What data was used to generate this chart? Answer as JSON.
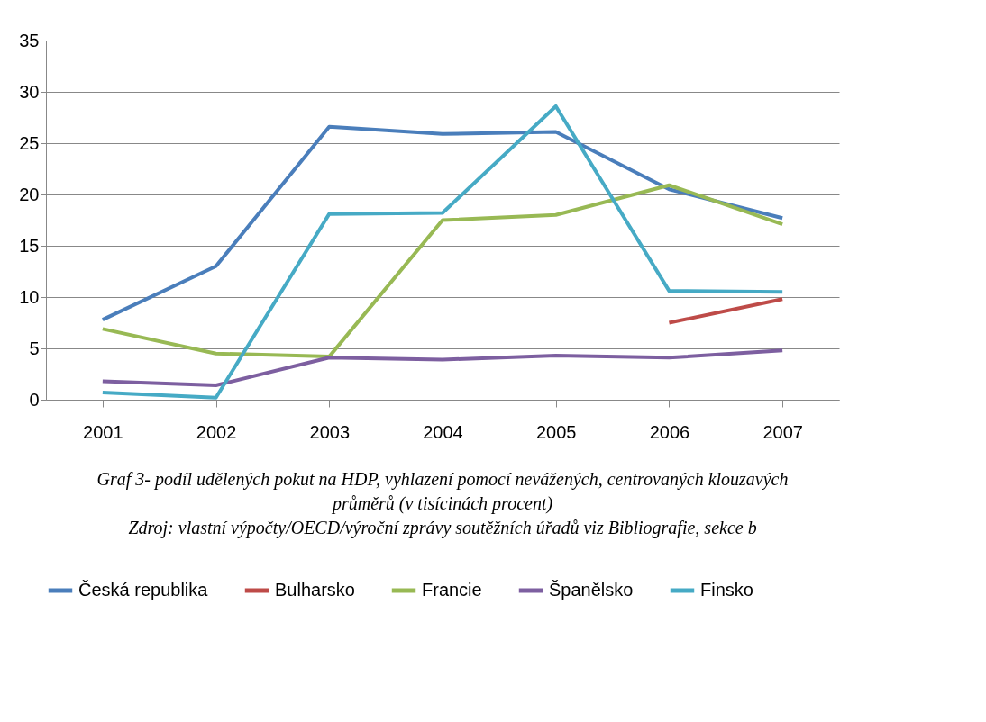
{
  "chart_data": {
    "type": "line",
    "categories": [
      "2001",
      "2002",
      "2003",
      "2004",
      "2005",
      "2006",
      "2007"
    ],
    "series": [
      {
        "name": "Česká republika",
        "color": "#4a7ebb",
        "values": [
          7.8,
          13.0,
          26.6,
          25.9,
          26.1,
          20.5,
          17.7
        ]
      },
      {
        "name": "Bulharsko",
        "color": "#be4b48",
        "values": [
          null,
          null,
          null,
          null,
          null,
          7.5,
          9.8
        ]
      },
      {
        "name": "Francie",
        "color": "#98b954",
        "values": [
          6.9,
          4.5,
          4.2,
          17.5,
          18.0,
          20.9,
          17.1
        ]
      },
      {
        "name": "Španělsko",
        "color": "#7d5fa0",
        "values": [
          1.8,
          1.4,
          4.1,
          3.9,
          4.3,
          4.1,
          4.8
        ]
      },
      {
        "name": "Finsko",
        "color": "#46aac5",
        "values": [
          0.7,
          0.2,
          18.1,
          18.2,
          28.6,
          10.6,
          10.5
        ]
      }
    ],
    "ylim": [
      0,
      35
    ],
    "yticks": [
      0,
      5,
      10,
      15,
      20,
      25,
      30,
      35
    ],
    "grid": "y",
    "legend": "bottom",
    "marker": "none",
    "line_style": "solid",
    "annotations": [
      "Graf 3- podíl udělených pokut na HDP, vyhlazení pomocí nevážených, centrovaných klouzavých",
      "průměrů (v tisícinách procent)",
      "Zdroj: vlastní výpočty/OECD/výroční zprávy soutěžních úřadů viz Bibliografie, sekce b"
    ]
  }
}
